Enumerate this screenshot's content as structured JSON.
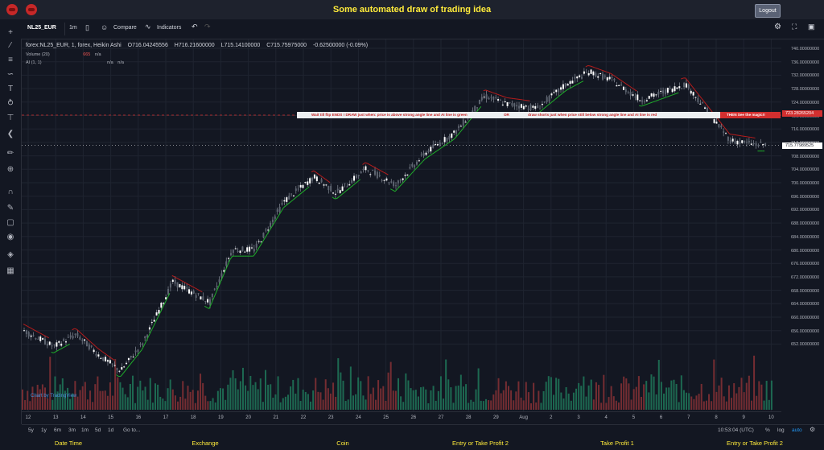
{
  "app": {
    "title": "Some automated draw of trading idea",
    "logout_label": "Logout"
  },
  "toolbar": {
    "symbol": "NL25_EUR",
    "interval": "1m",
    "compare_label": "Compare",
    "indicators_label": "Indicators"
  },
  "legend": {
    "title": "forex:NL25_EUR, 1, forex, Heikin Ashi",
    "open": "O716.04245556",
    "high": "H716.21600000",
    "low": "L715.14100000",
    "close": "C715.75975000",
    "change": "-0.62500000 (-0.09%)",
    "volume_label": "Volume (20)",
    "volume_value": "665",
    "volume_na": "n/a",
    "ai_label": "AI (1, 1)",
    "ai_na1": "n/a",
    "ai_na2": "n/a"
  },
  "annotation": {
    "part1": "Wait till flip ENDS !   DRAW just when:  price is above strong angle line and AI line is green",
    "part2": "OR",
    "part3": "draw shorts just when price still below strong angle line and AI line is red",
    "magic": "THEN See the magic!!"
  },
  "price_axis": {
    "labels": [
      "740.00000000",
      "736.00000000",
      "732.00000000",
      "728.00000000",
      "724.00000000",
      "720.00000000",
      "716.00000000",
      "712.00000000",
      "708.00000000",
      "704.00000000",
      "700.00000000",
      "696.00000000",
      "692.00000000",
      "688.00000000",
      "684.00000000",
      "680.00000000",
      "676.00000000",
      "672.00000000",
      "668.00000000",
      "664.00000000",
      "660.00000000",
      "656.00000000",
      "652.00000000"
    ],
    "badge_red": "723.28265204",
    "badge_current": "715.77989525"
  },
  "time_axis": {
    "labels": [
      "12",
      "13",
      "14",
      "15",
      "16",
      "17",
      "18",
      "19",
      "20",
      "21",
      "22",
      "23",
      "24",
      "25",
      "26",
      "27",
      "28",
      "29",
      "Aug",
      "2",
      "3",
      "4",
      "5",
      "6",
      "7",
      "8",
      "9",
      "10"
    ]
  },
  "bottom_toolbar": {
    "ranges": [
      "5y",
      "1y",
      "6m",
      "3m",
      "1m",
      "5d",
      "1d"
    ],
    "goto_label": "Go to...",
    "time": "10:53:04 (UTC)",
    "percent": "%",
    "log": "log",
    "auto": "auto"
  },
  "watermark": "Chart by TradingView",
  "footer": {
    "columns": [
      "Date Time",
      "Exchange",
      "Coin",
      "Entry or Take Profit 2",
      "Take Profit 1",
      "Entry or Take Profit 2"
    ]
  },
  "chart_data": {
    "type": "candlestick",
    "ylim": [
      650,
      742
    ],
    "time_labels": [
      "12",
      "13",
      "14",
      "15",
      "16",
      "17",
      "18",
      "19",
      "20",
      "21",
      "22",
      "23",
      "24",
      "25",
      "26",
      "27",
      "28",
      "29",
      "Aug",
      "2",
      "3",
      "4",
      "5",
      "6",
      "7",
      "8",
      "9",
      "10"
    ],
    "price_path": [
      [
        0,
        670
      ],
      [
        0.04,
        666
      ],
      [
        0.07,
        669
      ],
      [
        0.1,
        664
      ],
      [
        0.13,
        660
      ],
      [
        0.16,
        667
      ],
      [
        0.2,
        682
      ],
      [
        0.23,
        679
      ],
      [
        0.25,
        677
      ],
      [
        0.28,
        690
      ],
      [
        0.31,
        690
      ],
      [
        0.35,
        702
      ],
      [
        0.39,
        708
      ],
      [
        0.42,
        704
      ],
      [
        0.46,
        710
      ],
      [
        0.5,
        706
      ],
      [
        0.54,
        714
      ],
      [
        0.58,
        719
      ],
      [
        0.62,
        728
      ],
      [
        0.65,
        726
      ],
      [
        0.69,
        725
      ],
      [
        0.73,
        731
      ],
      [
        0.76,
        734
      ],
      [
        0.79,
        732
      ],
      [
        0.83,
        727
      ],
      [
        0.86,
        729
      ],
      [
        0.89,
        731
      ],
      [
        0.92,
        724
      ],
      [
        0.95,
        717
      ],
      [
        0.985,
        716
      ]
    ],
    "ai_line_colors": {
      "up": "#1fae2a",
      "down": "#b71c1c"
    },
    "annotation_level": 723.28265204,
    "last_price": 715.77989525,
    "volume": {
      "type": "bar",
      "colors": {
        "up": "#26a69a",
        "down": "#ef5350"
      }
    }
  }
}
